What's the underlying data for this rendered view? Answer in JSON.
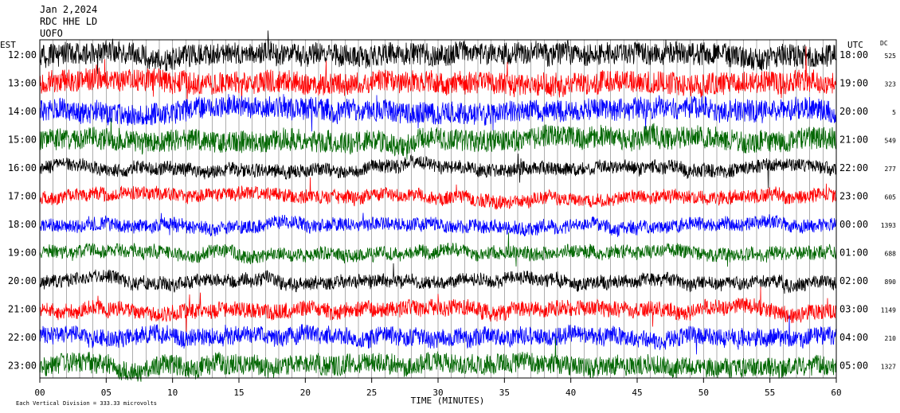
{
  "header": {
    "date": "Jan 2,2024",
    "station": "RDC HHE LD",
    "source": "UOFO"
  },
  "axis_titles": {
    "left": "EST",
    "right": "UTC",
    "dc": "DC",
    "x": "TIME (MINUTES)"
  },
  "footer": {
    "scale_text": "Each Vertical Division =  333.33 microvolts"
  },
  "colors": {
    "cycle": [
      "#000000",
      "#ff0000",
      "#0000ff",
      "#006600"
    ]
  },
  "chart_data": {
    "type": "line",
    "title": "Jan 2,2024",
    "xlabel": "TIME (MINUTES)",
    "xlim": [
      0,
      60
    ],
    "x_ticks": [
      "00",
      "05",
      "10",
      "15",
      "20",
      "25",
      "30",
      "35",
      "40",
      "45",
      "50",
      "55",
      "60"
    ],
    "ylabel_left": "EST",
    "ylabel_right": "UTC",
    "grid": "vertical lines each minute",
    "series": [
      {
        "est": "12:00",
        "utc": "18:00",
        "dc": "525",
        "color": "#000000",
        "amplitude": 1.0
      },
      {
        "est": "13:00",
        "utc": "19:00",
        "dc": "323",
        "color": "#ff0000",
        "amplitude": 1.0
      },
      {
        "est": "14:00",
        "utc": "20:00",
        "dc": "5",
        "color": "#0000ff",
        "amplitude": 1.0
      },
      {
        "est": "15:00",
        "utc": "21:00",
        "dc": "549",
        "color": "#006600",
        "amplitude": 1.0
      },
      {
        "est": "16:00",
        "utc": "22:00",
        "dc": "277",
        "color": "#000000",
        "amplitude": 0.6
      },
      {
        "est": "17:00",
        "utc": "23:00",
        "dc": "605",
        "color": "#ff0000",
        "amplitude": 0.6
      },
      {
        "est": "18:00",
        "utc": "00:00",
        "dc": "1393",
        "color": "#0000ff",
        "amplitude": 0.6
      },
      {
        "est": "19:00",
        "utc": "01:00",
        "dc": "688",
        "color": "#006600",
        "amplitude": 0.6
      },
      {
        "est": "20:00",
        "utc": "02:00",
        "dc": "890",
        "color": "#000000",
        "amplitude": 0.6
      },
      {
        "est": "21:00",
        "utc": "03:00",
        "dc": "1149",
        "color": "#ff0000",
        "amplitude": 0.7
      },
      {
        "est": "22:00",
        "utc": "04:00",
        "dc": "210",
        "color": "#0000ff",
        "amplitude": 0.8
      },
      {
        "est": "23:00",
        "utc": "05:00",
        "dc": "1327",
        "color": "#006600",
        "amplitude": 0.9
      }
    ]
  }
}
